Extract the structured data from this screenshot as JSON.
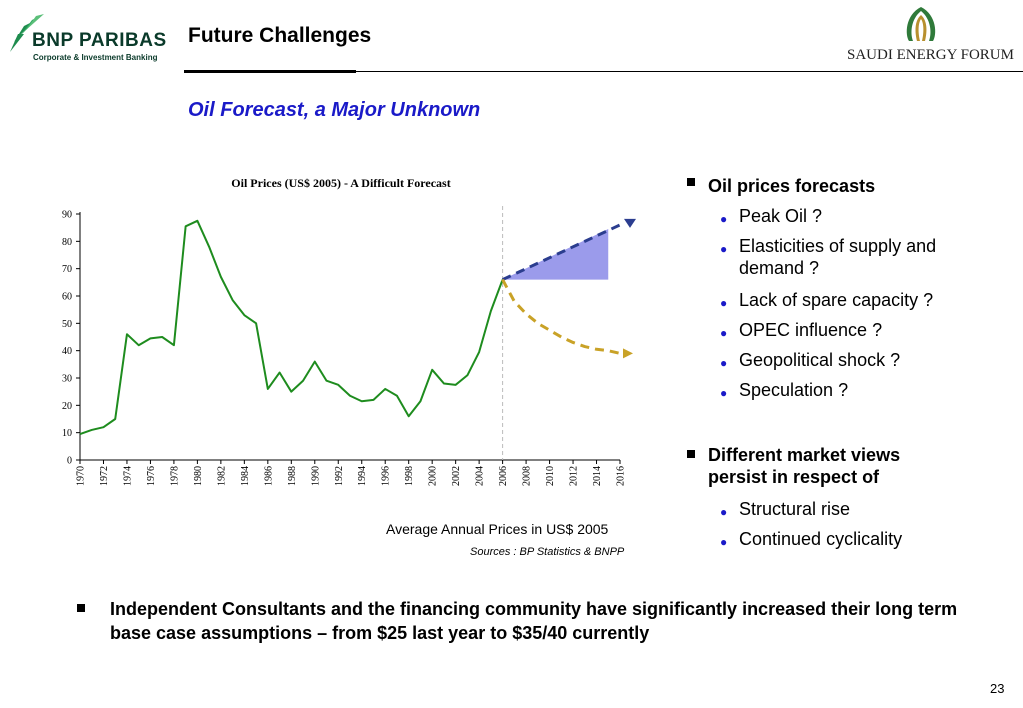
{
  "header": {
    "left_logo": {
      "name": "BNP PARIBAS",
      "tagline": "Corporate & Investment Banking",
      "icon": "bird-flight-icon"
    },
    "title": "Future Challenges",
    "right_logo": {
      "name": "SAUDI ENERGY FORUM",
      "icon": "leaf-arch-icon"
    }
  },
  "subtitle": "Oil Forecast, a Major Unknown",
  "colors": {
    "subtitle": "#1a1ac8",
    "history_line": "#1e8c1e",
    "high_forecast": "#2b3d8f",
    "high_band": "#8a8ae8",
    "low_forecast": "#c9a227",
    "bullet_dot": "#1a1ac8"
  },
  "chart_data": {
    "type": "line",
    "title": "Oil Prices (US$ 2005) - A Difficult Forecast",
    "xlabel": "",
    "ylabel": "",
    "ylim": [
      0,
      90
    ],
    "yticks": [
      "0",
      "10",
      "20",
      "30",
      "40",
      "50",
      "60",
      "70",
      "80",
      "90"
    ],
    "xlim": [
      1970,
      2016
    ],
    "xticks": [
      "1970",
      "1972",
      "1974",
      "1976",
      "1978",
      "1980",
      "1982",
      "1984",
      "1986",
      "1988",
      "1990",
      "1992",
      "1994",
      "1996",
      "1998",
      "2000",
      "2002",
      "2004",
      "2006",
      "2008",
      "2010",
      "2012",
      "2014",
      "2016"
    ],
    "grid": false,
    "legend": "none",
    "divider_year": 2006,
    "series": [
      {
        "style": "solid-green",
        "x": [
          1970,
          1971,
          1972,
          1973,
          1974,
          1975,
          1976,
          1977,
          1978,
          1979,
          1980,
          1981,
          1982,
          1983,
          1984,
          1985,
          1986,
          1987,
          1988,
          1989,
          1990,
          1991,
          1992,
          1993,
          1994,
          1995,
          1996,
          1997,
          1998,
          1999,
          2000,
          2001,
          2002,
          2003,
          2004,
          2005,
          2006
        ],
        "values": [
          9.5,
          11,
          12,
          15,
          46,
          42,
          44.5,
          45,
          42,
          85.5,
          87.5,
          78,
          67,
          58.5,
          53,
          50,
          26,
          32,
          25,
          29,
          36,
          29,
          27.5,
          23.5,
          21.5,
          22,
          26,
          23.5,
          16,
          21.5,
          33,
          28,
          27.5,
          31,
          39.5,
          54.5,
          66
        ]
      },
      {
        "style": "dashed-blue-high",
        "x": [
          2006,
          2016
        ],
        "values": [
          66,
          86
        ]
      },
      {
        "style": "dashed-gold-low",
        "x": [
          2006,
          2007,
          2008,
          2009,
          2010,
          2011,
          2012,
          2013,
          2014,
          2015,
          2016
        ],
        "values": [
          66,
          58,
          53.5,
          50,
          47.5,
          45,
          43,
          41.5,
          40.5,
          40,
          39
        ]
      }
    ],
    "band": {
      "x": [
        2006,
        2015
      ],
      "lower": [
        66,
        66
      ],
      "upper": [
        66,
        84.5
      ]
    }
  },
  "caption": "Average Annual Prices in US$ 2005",
  "sources": "Sources : BP Statistics & BNPP",
  "bullets": [
    {
      "text": "Oil prices forecasts",
      "items": [
        "Peak Oil  ?",
        "Elasticities of supply and demand ?",
        "Lack of spare capacity ?",
        "OPEC influence ?",
        "Geopolitical shock ?",
        "Speculation ?"
      ]
    },
    {
      "text": "Different market views persist in respect of",
      "items": [
        "Structural rise",
        "Continued cyclicality"
      ]
    }
  ],
  "bottom_bullet": "Independent Consultants and the financing community have significantly increased their long term base case assumptions – from $25 last year to $35/40 currently",
  "page_number": "23"
}
